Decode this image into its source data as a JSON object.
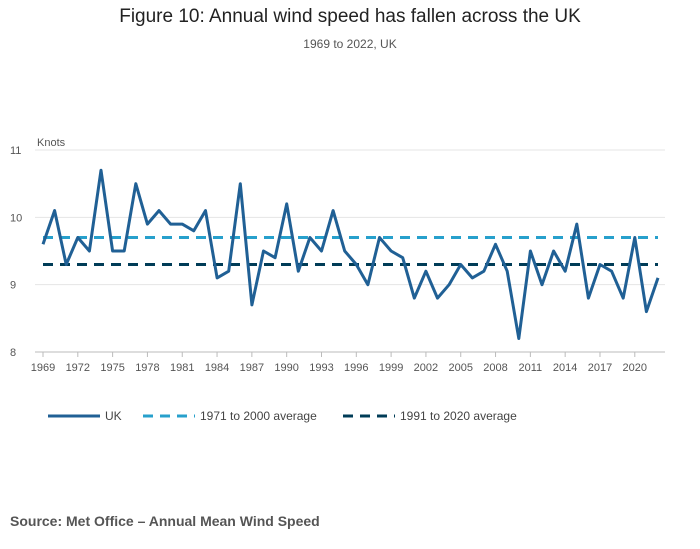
{
  "title": "Figure 10: Annual wind speed has fallen across the UK",
  "subtitle": "1969 to 2022, UK",
  "source": "Source: Met Office – Annual Mean Wind Speed",
  "colors": {
    "uk": "#206095",
    "avg1971": "#27a0cc",
    "avg1991": "#003c57",
    "grid": "#e5e5e5",
    "axis": "#bbbbbb"
  },
  "chart_data": {
    "type": "line",
    "title": "Figure 10: Annual wind speed has fallen across the UK",
    "subtitle": "1969 to 2022, UK",
    "xlabel": "",
    "ylabel": "Knots",
    "ylim": [
      8,
      11
    ],
    "xlim": [
      1969,
      2022
    ],
    "yticks": [
      8,
      9,
      10,
      11
    ],
    "xticks": [
      1969,
      1972,
      1975,
      1978,
      1981,
      1984,
      1987,
      1990,
      1993,
      1996,
      1999,
      2002,
      2005,
      2008,
      2011,
      2014,
      2017,
      2020
    ],
    "legend_position": "bottom-left",
    "series": [
      {
        "name": "UK",
        "style": "solid",
        "x": [
          1969,
          1970,
          1971,
          1972,
          1973,
          1974,
          1975,
          1976,
          1977,
          1978,
          1979,
          1980,
          1981,
          1982,
          1983,
          1984,
          1985,
          1986,
          1987,
          1988,
          1989,
          1990,
          1991,
          1992,
          1993,
          1994,
          1995,
          1996,
          1997,
          1998,
          1999,
          2000,
          2001,
          2002,
          2003,
          2004,
          2005,
          2006,
          2007,
          2008,
          2009,
          2010,
          2011,
          2012,
          2013,
          2014,
          2015,
          2016,
          2017,
          2018,
          2019,
          2020,
          2021,
          2022
        ],
        "values": [
          9.6,
          10.1,
          9.3,
          9.7,
          9.5,
          10.7,
          9.5,
          9.5,
          10.5,
          9.9,
          10.1,
          9.9,
          9.9,
          9.8,
          10.1,
          9.1,
          9.2,
          10.5,
          8.7,
          9.5,
          9.4,
          10.2,
          9.2,
          9.7,
          9.5,
          10.1,
          9.5,
          9.3,
          9.0,
          9.7,
          9.5,
          9.4,
          8.8,
          9.2,
          8.8,
          9.0,
          9.3,
          9.1,
          9.2,
          9.6,
          9.2,
          8.2,
          9.5,
          9.0,
          9.5,
          9.2,
          9.9,
          8.8,
          9.3,
          9.2,
          8.8,
          9.7,
          8.6,
          9.1
        ]
      },
      {
        "name": "1971 to 2000 average",
        "style": "dashed",
        "x": [
          1969,
          2022
        ],
        "values": [
          9.7,
          9.7
        ]
      },
      {
        "name": "1991 to 2020 average",
        "style": "dashed",
        "x": [
          1969,
          2022
        ],
        "values": [
          9.3,
          9.3
        ]
      }
    ]
  }
}
